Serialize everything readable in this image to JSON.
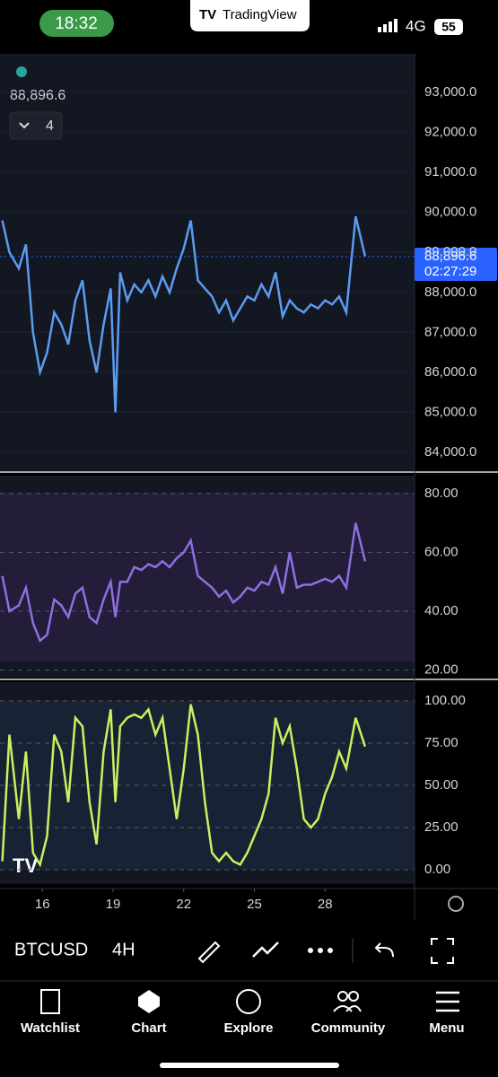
{
  "status_bar": {
    "time": "18:32",
    "app": "TradingView",
    "network": "4G",
    "battery": "55"
  },
  "legend": {
    "price": "88,896.6",
    "indicators_count": "4"
  },
  "last_price": {
    "value": 88896.6,
    "label": "88,896.6",
    "countdown": "02:27:29"
  },
  "chart_data": [
    {
      "type": "line",
      "x": [
        14.3,
        14.6,
        15.0,
        15.3,
        15.6,
        15.9,
        16.2,
        16.5,
        16.8,
        17.1,
        17.4,
        17.7,
        18.0,
        18.3,
        18.6,
        18.9,
        19.1,
        19.3,
        19.6,
        19.9,
        20.2,
        20.5,
        20.8,
        21.1,
        21.4,
        21.7,
        22.0,
        22.3,
        22.6,
        22.9,
        23.2,
        23.5,
        23.8,
        24.1,
        24.4,
        24.7,
        25.0,
        25.3,
        25.6,
        25.9,
        26.2,
        26.5,
        26.8,
        27.1,
        27.4,
        27.7,
        28.0,
        28.3,
        28.6,
        28.9,
        29.3,
        29.7
      ],
      "xlim": [
        14.2,
        31.8
      ],
      "xticks": [
        16,
        19,
        22,
        25,
        28
      ],
      "series": [
        {
          "color": "#5b9cf0",
          "values": [
            89800,
            89000,
            88600,
            89200,
            87000,
            86000,
            86500,
            87500,
            87200,
            86700,
            87800,
            88300,
            86800,
            86000,
            87200,
            88100,
            85000,
            88500,
            87800,
            88200,
            88000,
            88300,
            87900,
            88400,
            88000,
            88600,
            89100,
            89800,
            88300,
            88100,
            87900,
            87500,
            87800,
            87300,
            87600,
            87900,
            87800,
            88200,
            87900,
            88500,
            87400,
            87800,
            87600,
            87500,
            87700,
            87600,
            87800,
            87700,
            87900,
            87500,
            89900,
            88900
          ]
        }
      ],
      "ylim": [
        83530,
        93965
      ],
      "yticks": [
        {
          "value": 84000,
          "label": "84,000.0"
        },
        {
          "value": 85000,
          "label": "85,000.0"
        },
        {
          "value": 86000,
          "label": "86,000.0"
        },
        {
          "value": 87000,
          "label": "87,000.0"
        },
        {
          "value": 88000,
          "label": "88,000.0"
        },
        {
          "value": 89000,
          "label": "89,000.0"
        },
        {
          "value": 90000,
          "label": "90,000.0"
        },
        {
          "value": 91000,
          "label": "91,000.0"
        },
        {
          "value": 92000,
          "label": "92,000.0"
        },
        {
          "value": 93000,
          "label": "93,000.0"
        }
      ]
    },
    {
      "type": "line",
      "series": [
        {
          "color": "#8e6fe0",
          "values": [
            52,
            40,
            42,
            48,
            36,
            30,
            32,
            44,
            42,
            38,
            46,
            48,
            38,
            36,
            44,
            50,
            38,
            50,
            50,
            55,
            54,
            56,
            55,
            57,
            55,
            58,
            60,
            64,
            52,
            50,
            48,
            45,
            47,
            43,
            45,
            48,
            47,
            50,
            49,
            55,
            46,
            60,
            48,
            49,
            49,
            50,
            51,
            50,
            52,
            48,
            70,
            57
          ]
        }
      ],
      "ylim": [
        17.45,
        86.06
      ],
      "yticks": [
        {
          "value": 20,
          "label": "20.00"
        },
        {
          "value": 40,
          "label": "40.00"
        },
        {
          "value": 60,
          "label": "60.00"
        },
        {
          "value": 80,
          "label": "80.00"
        }
      ]
    },
    {
      "type": "line",
      "series": [
        {
          "color": "#c8f060",
          "values": [
            5,
            80,
            30,
            70,
            10,
            3,
            20,
            80,
            70,
            40,
            90,
            85,
            40,
            15,
            70,
            95,
            40,
            85,
            90,
            92,
            90,
            95,
            80,
            90,
            60,
            30,
            60,
            98,
            80,
            40,
            10,
            5,
            10,
            5,
            3,
            10,
            20,
            30,
            45,
            90,
            75,
            85,
            60,
            30,
            25,
            30,
            45,
            55,
            70,
            60,
            90,
            73
          ]
        }
      ],
      "ylim": [
        -8.5,
        111.2
      ],
      "yticks": [
        {
          "value": 0,
          "label": "0.00"
        },
        {
          "value": 25,
          "label": "25.00"
        },
        {
          "value": 50,
          "label": "50.00"
        },
        {
          "value": 75,
          "label": "75.00"
        },
        {
          "value": 100,
          "label": "100.00"
        }
      ]
    }
  ],
  "toolbar": {
    "symbol": "BTCUSD",
    "interval": "4H"
  },
  "tab_bar": [
    "Watchlist",
    "Chart",
    "Explore",
    "Community",
    "Menu"
  ]
}
